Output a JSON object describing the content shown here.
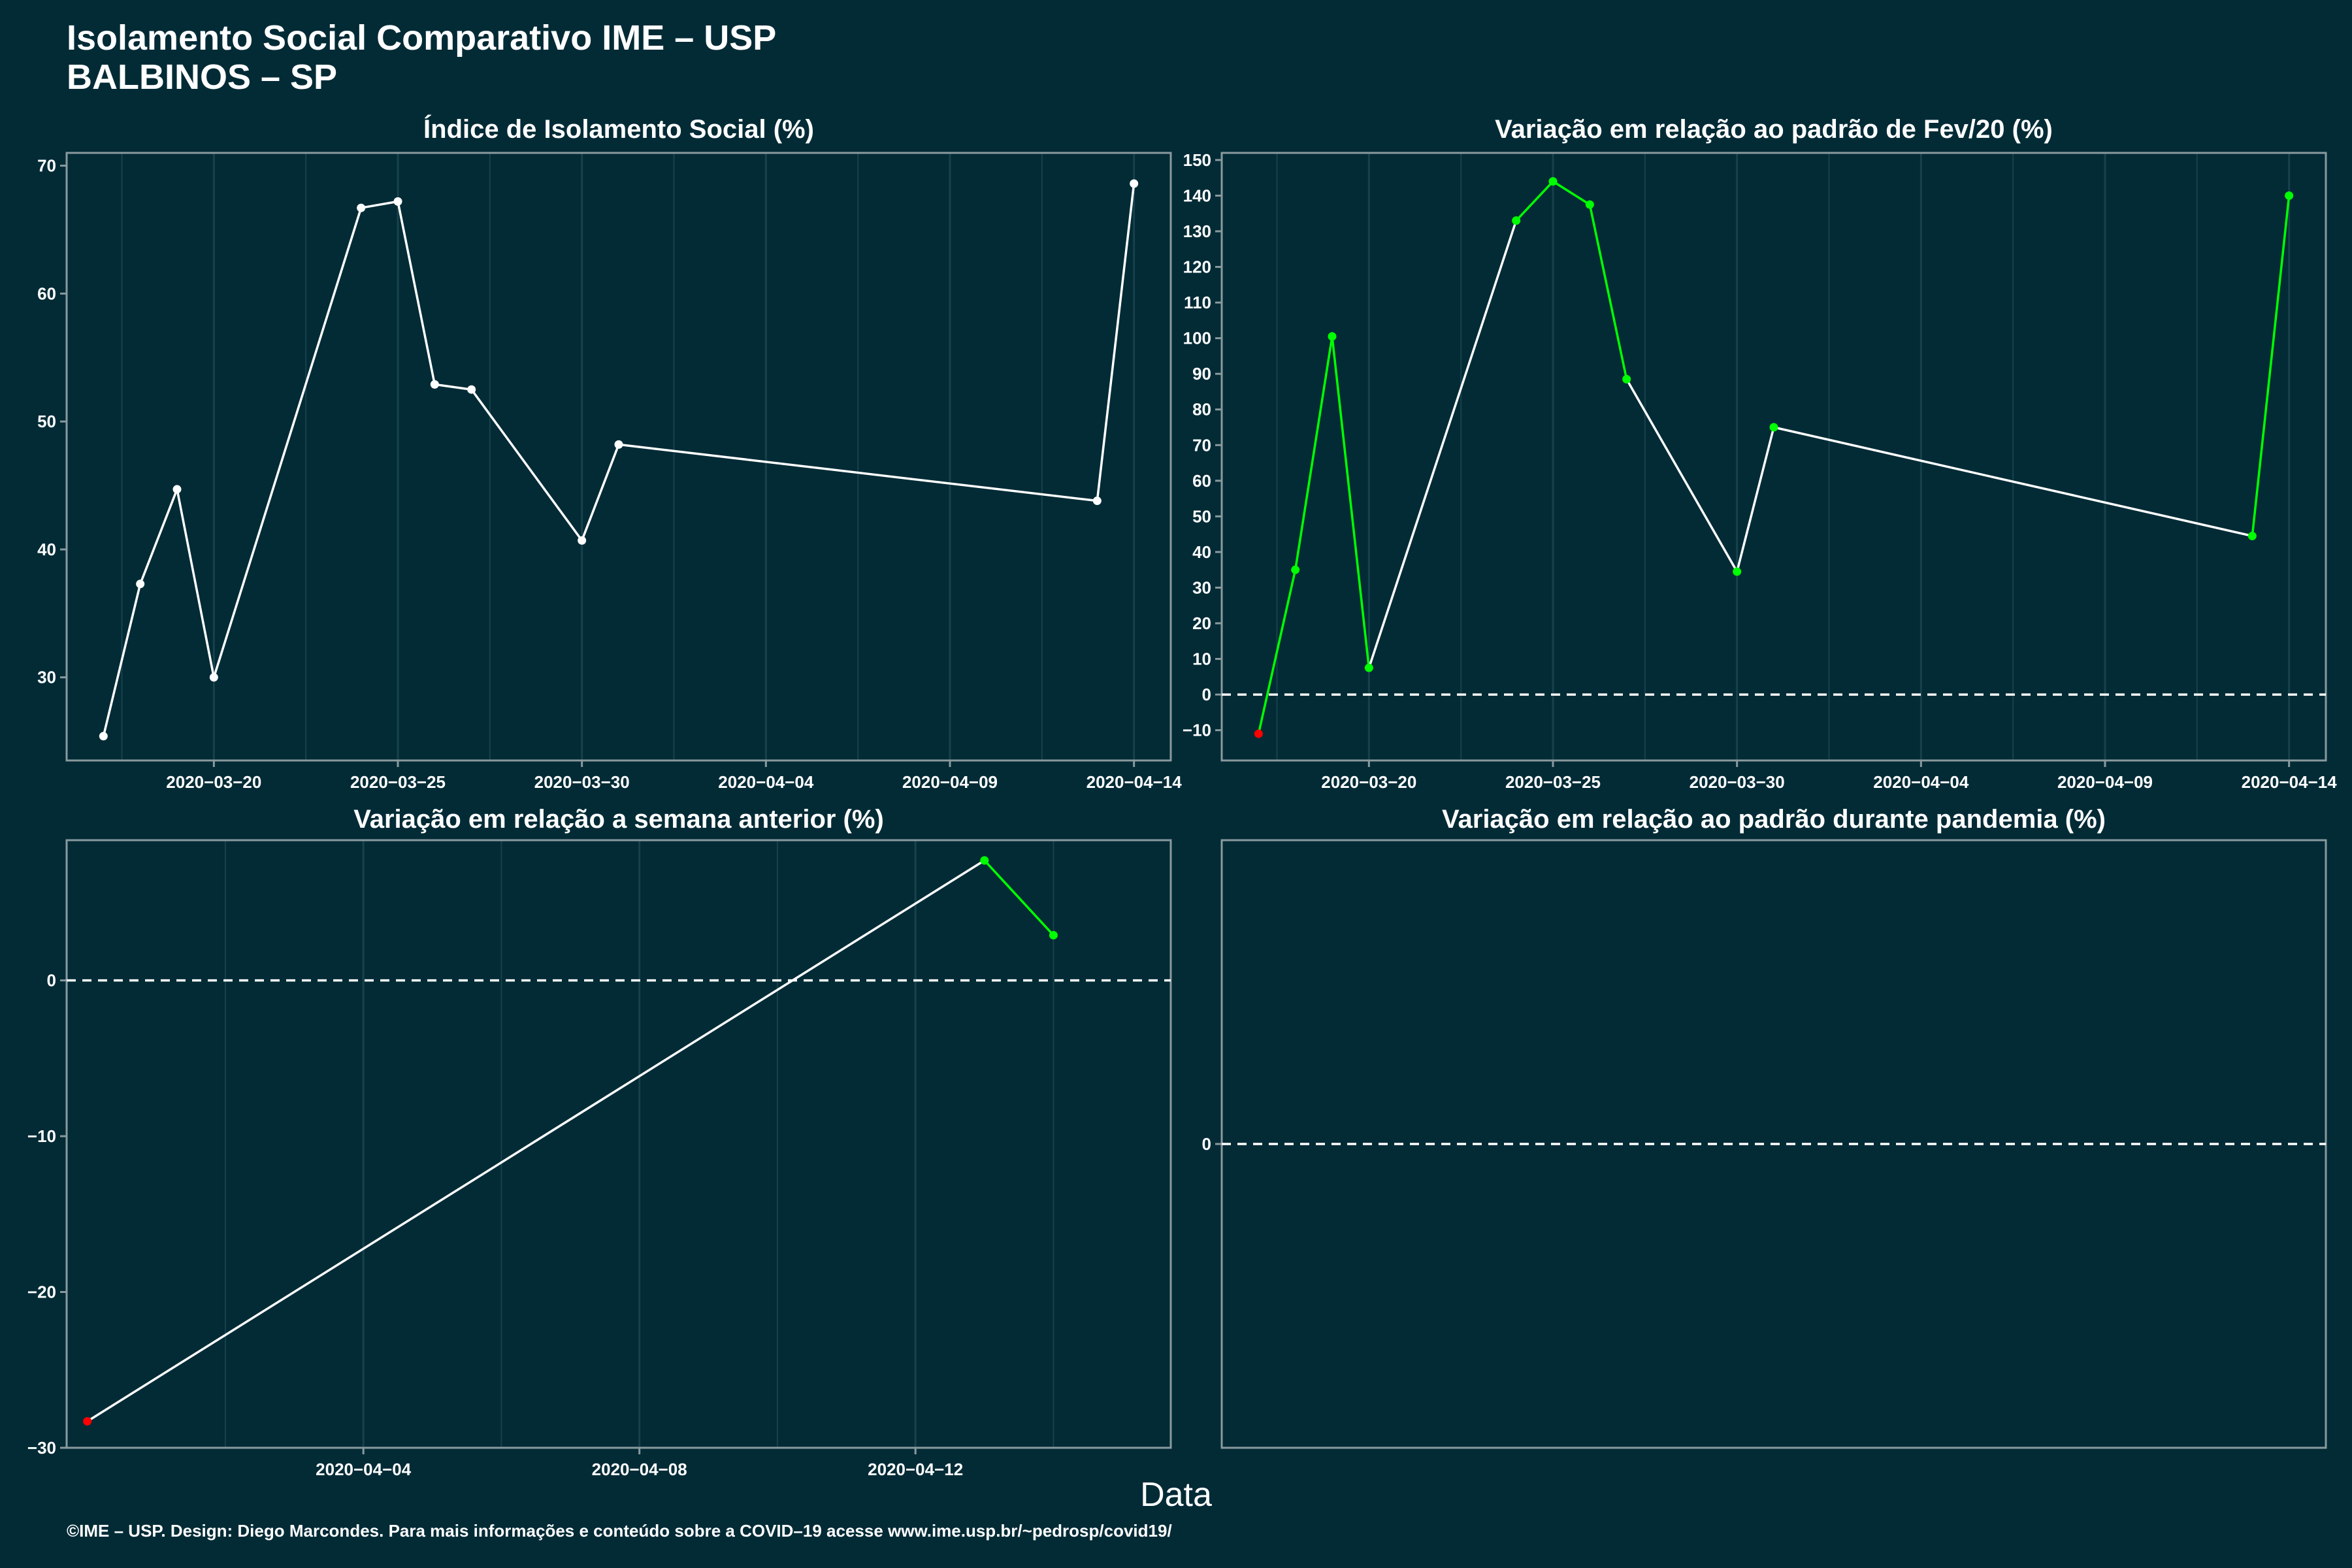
{
  "header": {
    "title_line1": "Isolamento Social Comparativo IME – USP",
    "title_line2": "BALBINOS – SP"
  },
  "xlabel": "Data",
  "footer": "©IME – USP. Design: Diego Marcondes. Para mais informações e conteúdo sobre a COVID–19 acesse www.ime.usp.br/~pedrosp/covid19/",
  "colors": {
    "background": "#022b36",
    "line": "#ffffff",
    "positive": "#00ff00",
    "negative": "#ff0000",
    "grid": "#17414b",
    "frame": "#8a9a9e"
  },
  "chart_data": [
    {
      "type": "line",
      "title": "Índice de Isolamento Social (%)",
      "x": [
        "2020-03-17",
        "2020-03-18",
        "2020-03-19",
        "2020-03-20",
        "2020-03-24",
        "2020-03-25",
        "2020-03-26",
        "2020-03-27",
        "2020-03-30",
        "2020-03-31",
        "2020-04-13",
        "2020-04-14"
      ],
      "y": [
        25.4,
        37.3,
        44.7,
        30.0,
        66.7,
        67.2,
        52.9,
        52.5,
        40.7,
        48.2,
        43.8,
        68.6
      ],
      "xlim": [
        "2020-03-16",
        "2020-04-15"
      ],
      "ylim": [
        23.5,
        71
      ],
      "yticks": [
        30,
        40,
        50,
        60,
        70
      ],
      "xticks": [
        "2020-03-20",
        "2020-03-25",
        "2020-03-30",
        "2020-04-04",
        "2020-04-09",
        "2020-04-14"
      ],
      "zero_line": false,
      "colored": false
    },
    {
      "type": "line",
      "title": "Variação em relação ao padrão de Fev/20 (%)",
      "x": [
        "2020-03-17",
        "2020-03-18",
        "2020-03-19",
        "2020-03-20",
        "2020-03-24",
        "2020-03-25",
        "2020-03-26",
        "2020-03-27",
        "2020-03-30",
        "2020-03-31",
        "2020-04-13",
        "2020-04-14"
      ],
      "y": [
        -11,
        35,
        100.5,
        7.5,
        133,
        144,
        137.5,
        88.5,
        34.5,
        75,
        44.5,
        140
      ],
      "xlim": [
        "2020-03-16",
        "2020-04-15"
      ],
      "ylim": [
        -18.5,
        152
      ],
      "yticks": [
        -10,
        0,
        10,
        20,
        30,
        40,
        50,
        60,
        70,
        80,
        90,
        100,
        110,
        120,
        130,
        140,
        150
      ],
      "xticks": [
        "2020-03-20",
        "2020-03-25",
        "2020-03-30",
        "2020-04-04",
        "2020-04-09",
        "2020-04-14"
      ],
      "zero_line": true,
      "colored": true,
      "segment_green": [
        true,
        true,
        true,
        false,
        true,
        true,
        true,
        false,
        false,
        false,
        true
      ],
      "point_colors": [
        "negative",
        "positive",
        "positive",
        "positive",
        "positive",
        "positive",
        "positive",
        "positive",
        "positive",
        "positive",
        "positive",
        "positive"
      ]
    },
    {
      "type": "line",
      "title": "Variação em relação a semana anterior (%)",
      "x": [
        "2020-03-31",
        "2020-04-13",
        "2020-04-14"
      ],
      "y": [
        -28.3,
        7.7,
        2.9
      ],
      "xlim": [
        "2020-03-30.7",
        "2020-04-15.7"
      ],
      "ylim": [
        -30,
        9
      ],
      "yticks": [
        -30,
        -20,
        -10,
        0
      ],
      "xticks": [
        "2020-04-04",
        "2020-04-08",
        "2020-04-12"
      ],
      "zero_line": true,
      "colored": true,
      "segment_green": [
        false,
        true
      ],
      "point_colors": [
        "negative",
        "positive",
        "positive"
      ]
    },
    {
      "type": "line",
      "title": "Variação em relação ao padrão durante pandemia (%)",
      "x": [],
      "y": [],
      "xlim": [
        "2020-03-16",
        "2020-04-15"
      ],
      "ylim": [
        -1,
        1
      ],
      "yticks": [
        0
      ],
      "xticks": [],
      "zero_line": true,
      "colored": false
    }
  ]
}
